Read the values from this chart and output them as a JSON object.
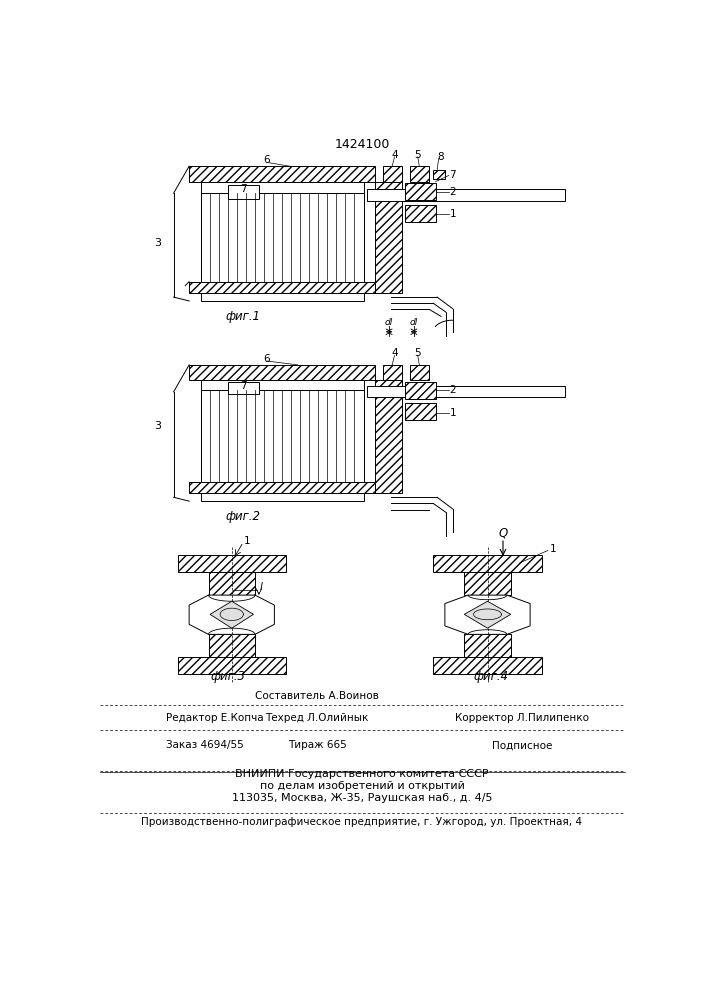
{
  "patent_number": "1424100",
  "background_color": "#ffffff",
  "fig1_label": "фиг.1",
  "fig2_label": "фиг.2",
  "fig3_label": "фиг.3",
  "fig4_label": "фиг.4",
  "footer_editor": "Редактор Е.Копча",
  "footer_composer": "Составитель А.Воинов",
  "footer_techred": "Техред Л.Олийнык",
  "footer_corrector": "Корректор Л.Пилипенко",
  "footer_order": "Заказ 4694/55",
  "footer_circ": "Тираж 665",
  "footer_sub": "Подписное",
  "footer_vnipi": "ВНИИПИ Государственного комитета СССР\nпо делам изобретений и открытий\n113035, Москва, Ж-35, Раушская наб., д. 4/5",
  "footer_prod": "Производственно-полиграфическое предприятие, г. Ужгород, ул. Проектная, 4"
}
